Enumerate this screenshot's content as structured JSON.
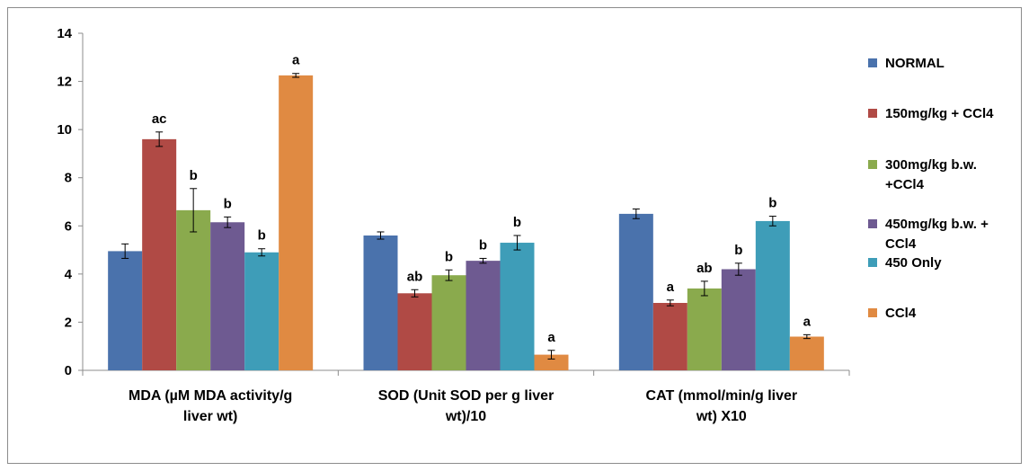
{
  "chart_data": {
    "type": "bar",
    "title": "",
    "xlabel": "",
    "ylabel": "",
    "ylim": [
      0,
      14
    ],
    "yticks": [
      0,
      2,
      4,
      6,
      8,
      10,
      12,
      14
    ],
    "grid": false,
    "legend_position": "right",
    "categories": [
      [
        "MDA (µM MDA activity/g",
        "liver wt)"
      ],
      [
        "SOD (Unit SOD per g liver",
        "wt)/10"
      ],
      [
        "CAT (mmol/min/g liver",
        "wt) X10"
      ]
    ],
    "series": [
      {
        "name": [
          "NORMAL"
        ],
        "color": "#4A72AC",
        "values": [
          4.95,
          5.6,
          6.5
        ],
        "errors": [
          0.3,
          0.15,
          0.2
        ],
        "labels": [
          "",
          "",
          ""
        ]
      },
      {
        "name": [
          "150mg/kg + CCl4"
        ],
        "color": "#B04A45",
        "values": [
          9.6,
          3.2,
          2.8
        ],
        "errors": [
          0.3,
          0.15,
          0.12
        ],
        "labels": [
          "ac",
          "ab",
          "a"
        ]
      },
      {
        "name": [
          "300mg/kg b.w.",
          "+CCl4"
        ],
        "color": "#8AAA4D",
        "values": [
          6.65,
          3.95,
          3.4
        ],
        "errors": [
          0.9,
          0.22,
          0.3
        ],
        "labels": [
          "b",
          "b",
          "ab"
        ]
      },
      {
        "name": [
          "450mg/kg b.w. +",
          "CCl4"
        ],
        "color": "#6E5A91",
        "values": [
          6.15,
          4.55,
          4.2
        ],
        "errors": [
          0.22,
          0.1,
          0.25
        ],
        "labels": [
          "b",
          "b",
          "b"
        ]
      },
      {
        "name": [
          "450 Only"
        ],
        "color": "#3E9DB8",
        "values": [
          4.9,
          5.3,
          6.2
        ],
        "errors": [
          0.15,
          0.3,
          0.2
        ],
        "labels": [
          "b",
          "b",
          "b"
        ]
      },
      {
        "name": [
          "CCl4"
        ],
        "color": "#E08A42",
        "values": [
          12.25,
          0.65,
          1.4
        ],
        "errors": [
          0.08,
          0.18,
          0.08
        ],
        "labels": [
          "a",
          "a",
          "a"
        ]
      }
    ]
  }
}
